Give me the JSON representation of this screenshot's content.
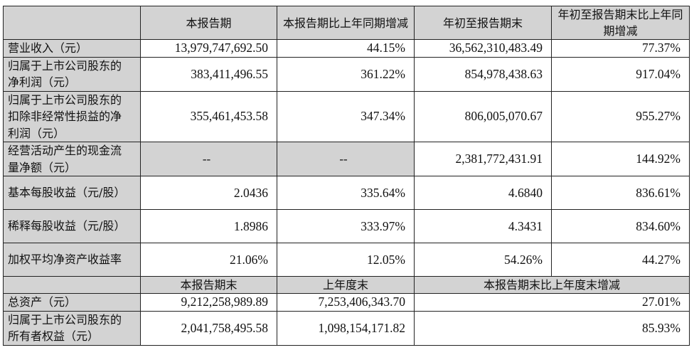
{
  "table": {
    "header": {
      "col0": "",
      "col1": "本报告期",
      "col2": "本报告期比上年同期增减",
      "col3": "年初至报告期末",
      "col4": "年初至报告期末比上年同期增减"
    },
    "rows": [
      {
        "label": "营业收入（元）",
        "current_period": "13,979,747,692.50",
        "current_yoy": "44.15%",
        "ytd": "36,562,310,483.49",
        "ytd_yoy": "77.37%"
      },
      {
        "label": "归属于上市公司股东的净利润（元）",
        "current_period": "383,411,496.55",
        "current_yoy": "361.22%",
        "ytd": "854,978,438.63",
        "ytd_yoy": "917.04%"
      },
      {
        "label": "归属于上市公司股东的扣除非经常性损益的净利润（元）",
        "current_period": "355,461,453.58",
        "current_yoy": "347.34%",
        "ytd": "806,005,070.67",
        "ytd_yoy": "955.27%"
      },
      {
        "label": "经营活动产生的现金流量净额（元）",
        "current_period": "--",
        "current_yoy": "--",
        "ytd": "2,381,772,431.91",
        "ytd_yoy": "144.92%"
      },
      {
        "label": "基本每股收益（元/股）",
        "current_period": "2.0436",
        "current_yoy": "335.64%",
        "ytd": "4.6840",
        "ytd_yoy": "836.61%"
      },
      {
        "label": "稀释每股收益（元/股）",
        "current_period": "1.8986",
        "current_yoy": "333.97%",
        "ytd": "4.3431",
        "ytd_yoy": "834.60%"
      },
      {
        "label": "加权平均净资产收益率",
        "current_period": "21.06%",
        "current_yoy": "12.05%",
        "ytd": "54.26%",
        "ytd_yoy": "44.27%"
      }
    ],
    "subheader": {
      "col0": "",
      "col1": "本报告期末",
      "col2": "上年度末",
      "col3": "本报告期末比上年度末增减"
    },
    "balance_rows": [
      {
        "label": "总资产（元）",
        "period_end": "9,212,258,989.89",
        "prior_year_end": "7,253,406,343.70",
        "change": "27.01%"
      },
      {
        "label": "归属于上市公司股东的所有者权益（元）",
        "period_end": "2,041,758,495.58",
        "prior_year_end": "1,098,154,171.82",
        "change": "85.93%"
      }
    ]
  },
  "colors": {
    "header_gray": "#d3d3d3",
    "border": "#222222",
    "text": "#111111"
  }
}
